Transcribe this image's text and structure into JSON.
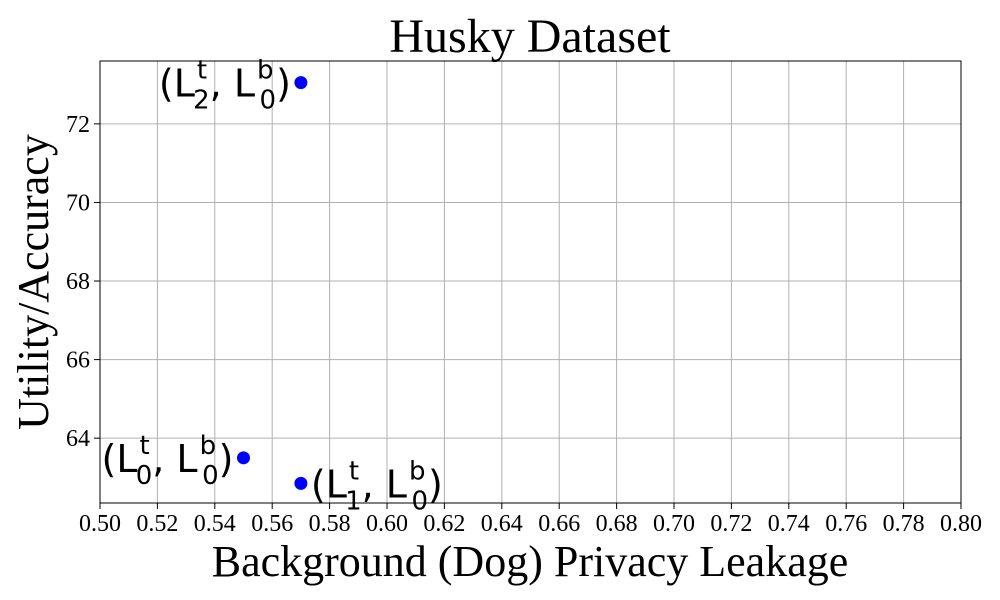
{
  "chart_data": {
    "type": "scatter",
    "title": "Husky Dataset",
    "xlabel": "Background (Dog) Privacy Leakage",
    "ylabel": "Utility/Accuracy",
    "xlim": [
      0.5,
      0.8
    ],
    "ylim": [
      62.35,
      73.6
    ],
    "xticks": [
      "0.50",
      "0.52",
      "0.54",
      "0.56",
      "0.58",
      "0.60",
      "0.62",
      "0.64",
      "0.66",
      "0.68",
      "0.70",
      "0.72",
      "0.74",
      "0.76",
      "0.78",
      "0.80"
    ],
    "yticks": [
      "64",
      "66",
      "68",
      "70",
      "72"
    ],
    "grid": true,
    "marker_color": "#0000ff",
    "points": [
      {
        "x": 0.57,
        "y": 73.05,
        "label": {
          "base": "(L",
          "sub1": "2",
          "sup1": "t",
          "mid": ", L",
          "sub2": "0",
          "sup2": "b",
          "end": ")"
        },
        "label_side": "left"
      },
      {
        "x": 0.55,
        "y": 63.5,
        "label": {
          "base": "(L",
          "sub1": "0",
          "sup1": "t",
          "mid": ", L",
          "sub2": "0",
          "sup2": "b",
          "end": ")"
        },
        "label_side": "left"
      },
      {
        "x": 0.57,
        "y": 62.85,
        "label": {
          "base": "(L",
          "sub1": "1",
          "sup1": "t",
          "mid": ", L",
          "sub2": "0",
          "sup2": "b",
          "end": ")"
        },
        "label_side": "right"
      }
    ]
  }
}
